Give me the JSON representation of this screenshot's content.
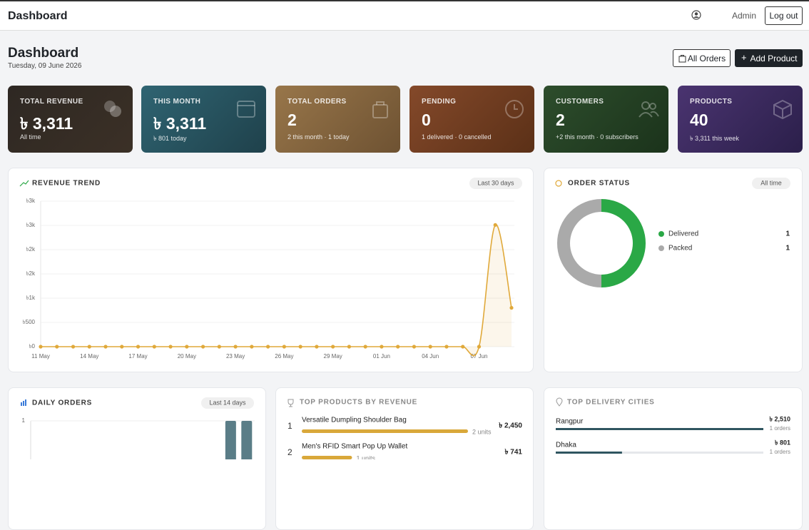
{
  "header": {
    "title": "Dashboard",
    "user": "Admin",
    "logout": "Log out"
  },
  "page": {
    "title": "Dashboard",
    "date": "Tuesday, 09 June 2026",
    "actions": [
      "All Orders",
      "Add Product"
    ]
  },
  "cards": [
    {
      "label": "TOTAL REVENUE",
      "value": "৳ 3,311",
      "sub": "All time"
    },
    {
      "label": "THIS MONTH",
      "value": "৳ 3,311",
      "sub": "৳ 801 today"
    },
    {
      "label": "TOTAL ORDERS",
      "value": "2",
      "sub": "2 this month · 1 today"
    },
    {
      "label": "PENDING",
      "value": "0",
      "sub": "1 delivered · 0 cancelled"
    },
    {
      "label": "CUSTOMERS",
      "value": "2",
      "sub": "+2 this month · 0 subscribers"
    },
    {
      "label": "PRODUCTS",
      "value": "40",
      "sub": "৳ 3,311 this week"
    }
  ],
  "chart_data": [
    {
      "type": "line",
      "title": "REVENUE TREND",
      "badge": "Last 30 days",
      "categories": [
        "11 May",
        null,
        null,
        "14 May",
        null,
        null,
        "17 May",
        null,
        null,
        "20 May",
        null,
        null,
        "23 May",
        null,
        null,
        "26 May",
        null,
        null,
        "29 May",
        null,
        null,
        "01 Jun",
        null,
        null,
        "04 Jun",
        null,
        null,
        "07 Jun",
        null,
        null
      ],
      "values": [
        0,
        0,
        0,
        0,
        0,
        0,
        0,
        0,
        0,
        0,
        0,
        0,
        0,
        0,
        0,
        0,
        0,
        0,
        0,
        0,
        0,
        0,
        0,
        0,
        0,
        0,
        0,
        0,
        2510,
        801
      ],
      "color": "#e0a93a",
      "ylim": [
        0,
        3000
      ],
      "yticks": [
        {
          "value": 0,
          "label": "৳0"
        },
        {
          "value": 500,
          "label": "৳500"
        },
        {
          "value": 1000,
          "label": "৳1k"
        },
        {
          "value": 1500,
          "label": "৳2k"
        },
        {
          "value": 2000,
          "label": "৳2k"
        },
        {
          "value": 2500,
          "label": "৳3k"
        },
        {
          "value": 3000,
          "label": "৳3k"
        }
      ],
      "grid": true
    },
    {
      "type": "donut",
      "title": "ORDER STATUS",
      "badge": "All time",
      "categories": [
        "Delivered",
        "Packed"
      ],
      "values": [
        1,
        1
      ],
      "colors": [
        "#2aa846",
        "#aaaaaa"
      ]
    },
    {
      "type": "bar",
      "title": "DAILY ORDERS",
      "badge": "Last 14 days",
      "categories": [
        null,
        null,
        null,
        null,
        null,
        null,
        null,
        null,
        null,
        null,
        null,
        null,
        null,
        null
      ],
      "values": [
        0,
        0,
        0,
        0,
        0,
        0,
        0,
        0,
        0,
        0,
        0,
        0,
        1,
        1
      ],
      "color": "#5a7d87",
      "ylim": [
        0,
        1
      ],
      "yticks": [
        1
      ],
      "grid": true
    }
  ],
  "top_products": {
    "title": "TOP PRODUCTS BY REVENUE",
    "color": "#d9a83a",
    "items": [
      {
        "rank": "1",
        "name": "Versatile Dumpling Shoulder Bag",
        "revenue": 2450,
        "revenue_label": "৳ 2,450",
        "units": "2 units"
      },
      {
        "rank": "2",
        "name": "Men's RFID Smart Pop Up Wallet",
        "revenue": 741,
        "revenue_label": "৳ 741",
        "units": "1 units"
      }
    ]
  },
  "top_cities": {
    "title": "TOP DELIVERY CITIES",
    "color": "#2f5560",
    "items": [
      {
        "name": "Rangpur",
        "revenue": 2510,
        "revenue_label": "৳ 2,510",
        "orders": "1 orders"
      },
      {
        "name": "Dhaka",
        "revenue": 801,
        "revenue_label": "৳ 801",
        "orders": "1 orders"
      }
    ]
  }
}
